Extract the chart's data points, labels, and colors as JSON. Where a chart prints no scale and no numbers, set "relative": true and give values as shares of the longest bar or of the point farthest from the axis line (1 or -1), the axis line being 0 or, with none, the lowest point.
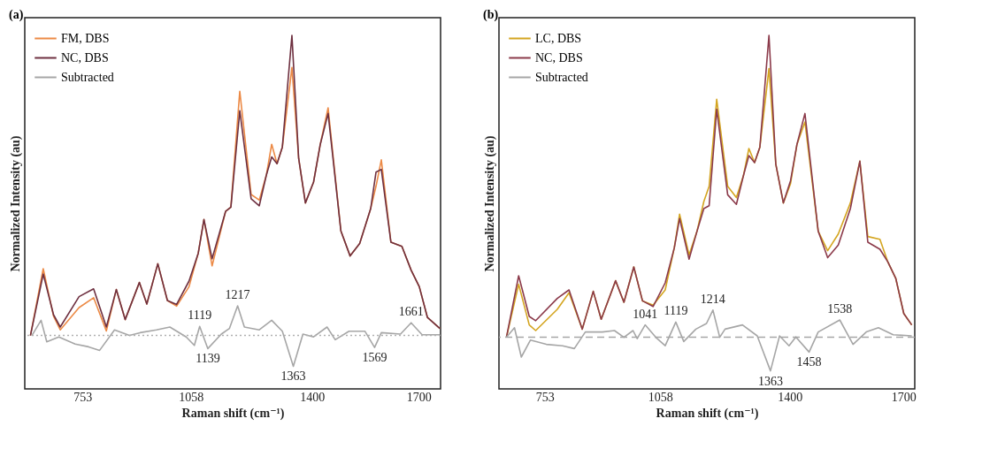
{
  "chart_data": [
    {
      "type": "line",
      "title": "(a)",
      "xlabel": "Raman shift (cm⁻¹)",
      "ylabel": "Normalized Intensity (au)",
      "relative": true,
      "legend": "top left",
      "xlim": [
        590,
        1762
      ],
      "xticks": [
        753,
        1058,
        1400,
        1700
      ],
      "series": [
        {
          "name": "FM, DBS",
          "color": "#ec8a46",
          "x": [
            606,
            642,
            671,
            690,
            743,
            784,
            820,
            848,
            873,
            913,
            934,
            965,
            992,
            1018,
            1053,
            1079,
            1095,
            1118,
            1156,
            1171,
            1196,
            1228,
            1251,
            1271,
            1286,
            1301,
            1316,
            1343,
            1362,
            1381,
            1404,
            1423,
            1445,
            1481,
            1507,
            1534,
            1565,
            1580,
            1595,
            1622,
            1653,
            1679,
            1702,
            1725,
            1760
          ],
          "values": [
            0.151,
            0.34,
            0.206,
            0.167,
            0.23,
            0.258,
            0.164,
            0.281,
            0.196,
            0.301,
            0.24,
            0.354,
            0.25,
            0.234,
            0.289,
            0.384,
            0.479,
            0.348,
            0.502,
            0.514,
            0.842,
            0.55,
            0.534,
            0.605,
            0.692,
            0.637,
            0.684,
            0.909,
            0.652,
            0.526,
            0.585,
            0.692,
            0.795,
            0.447,
            0.376,
            0.411,
            0.51,
            0.573,
            0.648,
            0.415,
            0.403,
            0.336,
            0.289,
            0.202,
            0.171
          ]
        },
        {
          "name": "NC, DBS",
          "color": "#6e3040",
          "x": [
            606,
            642,
            671,
            690,
            743,
            784,
            820,
            848,
            873,
            913,
            934,
            965,
            992,
            1018,
            1053,
            1079,
            1095,
            1118,
            1156,
            1171,
            1196,
            1228,
            1251,
            1271,
            1286,
            1301,
            1316,
            1343,
            1362,
            1381,
            1404,
            1423,
            1445,
            1481,
            1507,
            1534,
            1565,
            1580,
            1595,
            1622,
            1653,
            1679,
            1702,
            1725,
            1760
          ],
          "values": [
            0.151,
            0.325,
            0.21,
            0.175,
            0.261,
            0.283,
            0.175,
            0.281,
            0.196,
            0.301,
            0.24,
            0.354,
            0.25,
            0.239,
            0.305,
            0.384,
            0.479,
            0.368,
            0.502,
            0.514,
            0.787,
            0.538,
            0.518,
            0.605,
            0.656,
            0.637,
            0.684,
            1.0,
            0.652,
            0.526,
            0.585,
            0.692,
            0.779,
            0.447,
            0.376,
            0.411,
            0.51,
            0.613,
            0.621,
            0.415,
            0.403,
            0.336,
            0.289,
            0.202,
            0.171
          ]
        },
        {
          "name": "Subtracted",
          "color": "#a6a6a6",
          "x": [
            610,
            636,
            652,
            686,
            732,
            770,
            801,
            843,
            885,
            915,
            961,
            999,
            1045,
            1068,
            1083,
            1106,
            1144,
            1167,
            1190,
            1209,
            1251,
            1286,
            1316,
            1347,
            1374,
            1404,
            1442,
            1465,
            1504,
            1549,
            1576,
            1595,
            1649,
            1679,
            1710,
            1760
          ],
          "values": [
            0.151,
            0.194,
            0.133,
            0.147,
            0.127,
            0.119,
            0.109,
            0.167,
            0.151,
            0.159,
            0.167,
            0.175,
            0.147,
            0.123,
            0.177,
            0.114,
            0.155,
            0.171,
            0.235,
            0.175,
            0.167,
            0.194,
            0.163,
            0.064,
            0.155,
            0.147,
            0.175,
            0.139,
            0.163,
            0.163,
            0.117,
            0.159,
            0.155,
            0.187,
            0.153,
            0.153
          ]
        }
      ],
      "ref_lines": [
        {
          "axis": "y",
          "value": 0.151,
          "color": "#b0b0b0",
          "line_style": "dotted"
        }
      ],
      "annotations": [
        {
          "text": "1119",
          "x": 1083,
          "y": 0.177
        },
        {
          "text": "1139",
          "x": 1106,
          "y": 0.114
        },
        {
          "text": "1217",
          "x": 1190,
          "y": 0.235
        },
        {
          "text": "1363",
          "x": 1347,
          "y": 0.064
        },
        {
          "text": "1569",
          "x": 1576,
          "y": 0.117
        },
        {
          "text": "1661",
          "x": 1679,
          "y": 0.187
        }
      ]
    },
    {
      "type": "line",
      "title": "(b)",
      "xlabel": "Raman shift (cm⁻¹)",
      "ylabel": "Normalized Intensity (au)",
      "relative": true,
      "legend": "top left",
      "xlim": [
        632,
        1730
      ],
      "xticks": [
        753,
        1058,
        1400,
        1700
      ],
      "series": [
        {
          "name": "LC, DBS",
          "color": "#d4a520",
          "x": [
            652,
            684,
            712,
            729,
            786,
            817,
            852,
            881,
            902,
            940,
            962,
            988,
            1011,
            1039,
            1071,
            1095,
            1109,
            1134,
            1155,
            1173,
            1187,
            1207,
            1236,
            1259,
            1278,
            1292,
            1307,
            1321,
            1345,
            1363,
            1383,
            1402,
            1419,
            1440,
            1475,
            1500,
            1528,
            1560,
            1585,
            1606,
            1638,
            1659,
            1680,
            1701,
            1722
          ],
          "values": [
            0.147,
            0.296,
            0.181,
            0.165,
            0.225,
            0.272,
            0.169,
            0.276,
            0.197,
            0.306,
            0.245,
            0.345,
            0.249,
            0.237,
            0.28,
            0.399,
            0.494,
            0.379,
            0.446,
            0.53,
            0.573,
            0.819,
            0.573,
            0.541,
            0.605,
            0.68,
            0.64,
            0.684,
            0.906,
            0.636,
            0.526,
            0.581,
            0.692,
            0.755,
            0.446,
            0.391,
            0.438,
            0.526,
            0.644,
            0.431,
            0.423,
            0.359,
            0.312,
            0.213,
            0.181
          ]
        },
        {
          "name": "NC, DBS",
          "color": "#8b3a4a",
          "x": [
            652,
            684,
            712,
            729,
            786,
            817,
            852,
            881,
            902,
            940,
            962,
            988,
            1011,
            1039,
            1071,
            1095,
            1109,
            1134,
            1155,
            1173,
            1187,
            1207,
            1236,
            1259,
            1278,
            1292,
            1307,
            1321,
            1345,
            1363,
            1383,
            1402,
            1419,
            1440,
            1475,
            1500,
            1528,
            1560,
            1585,
            1606,
            1638,
            1659,
            1680,
            1701,
            1722
          ],
          "values": [
            0.147,
            0.32,
            0.205,
            0.193,
            0.256,
            0.28,
            0.169,
            0.276,
            0.197,
            0.306,
            0.245,
            0.345,
            0.249,
            0.233,
            0.3,
            0.399,
            0.482,
            0.367,
            0.446,
            0.51,
            0.518,
            0.791,
            0.549,
            0.522,
            0.605,
            0.66,
            0.64,
            0.684,
            1.0,
            0.636,
            0.526,
            0.589,
            0.692,
            0.779,
            0.446,
            0.371,
            0.407,
            0.51,
            0.644,
            0.415,
            0.395,
            0.359,
            0.312,
            0.213,
            0.181
          ]
        },
        {
          "name": "Subtracted",
          "color": "#a6a6a6",
          "x": [
            652,
            673,
            691,
            715,
            757,
            800,
            831,
            860,
            905,
            937,
            962,
            986,
            997,
            1018,
            1046,
            1071,
            1099,
            1120,
            1152,
            1180,
            1197,
            1215,
            1229,
            1275,
            1314,
            1349,
            1373,
            1398,
            1416,
            1451,
            1475,
            1532,
            1567,
            1602,
            1634,
            1673,
            1722
          ],
          "values": [
            0.146,
            0.173,
            0.09,
            0.138,
            0.126,
            0.122,
            0.114,
            0.161,
            0.161,
            0.165,
            0.146,
            0.165,
            0.142,
            0.181,
            0.146,
            0.122,
            0.189,
            0.134,
            0.169,
            0.185,
            0.223,
            0.146,
            0.169,
            0.181,
            0.15,
            0.051,
            0.15,
            0.122,
            0.147,
            0.104,
            0.161,
            0.195,
            0.126,
            0.161,
            0.173,
            0.153,
            0.15
          ]
        }
      ],
      "ref_lines": [
        {
          "axis": "y",
          "value": 0.146,
          "color": "#a6a6a6",
          "line_style": "dashed"
        }
      ],
      "annotations": [
        {
          "text": "1041",
          "x": 1018,
          "y": 0.181
        },
        {
          "text": "1119",
          "x": 1099,
          "y": 0.189
        },
        {
          "text": "1214",
          "x": 1197,
          "y": 0.223
        },
        {
          "text": "1363",
          "x": 1349,
          "y": 0.051
        },
        {
          "text": "1458",
          "x": 1451,
          "y": 0.104
        },
        {
          "text": "1538",
          "x": 1532,
          "y": 0.195
        }
      ]
    }
  ]
}
